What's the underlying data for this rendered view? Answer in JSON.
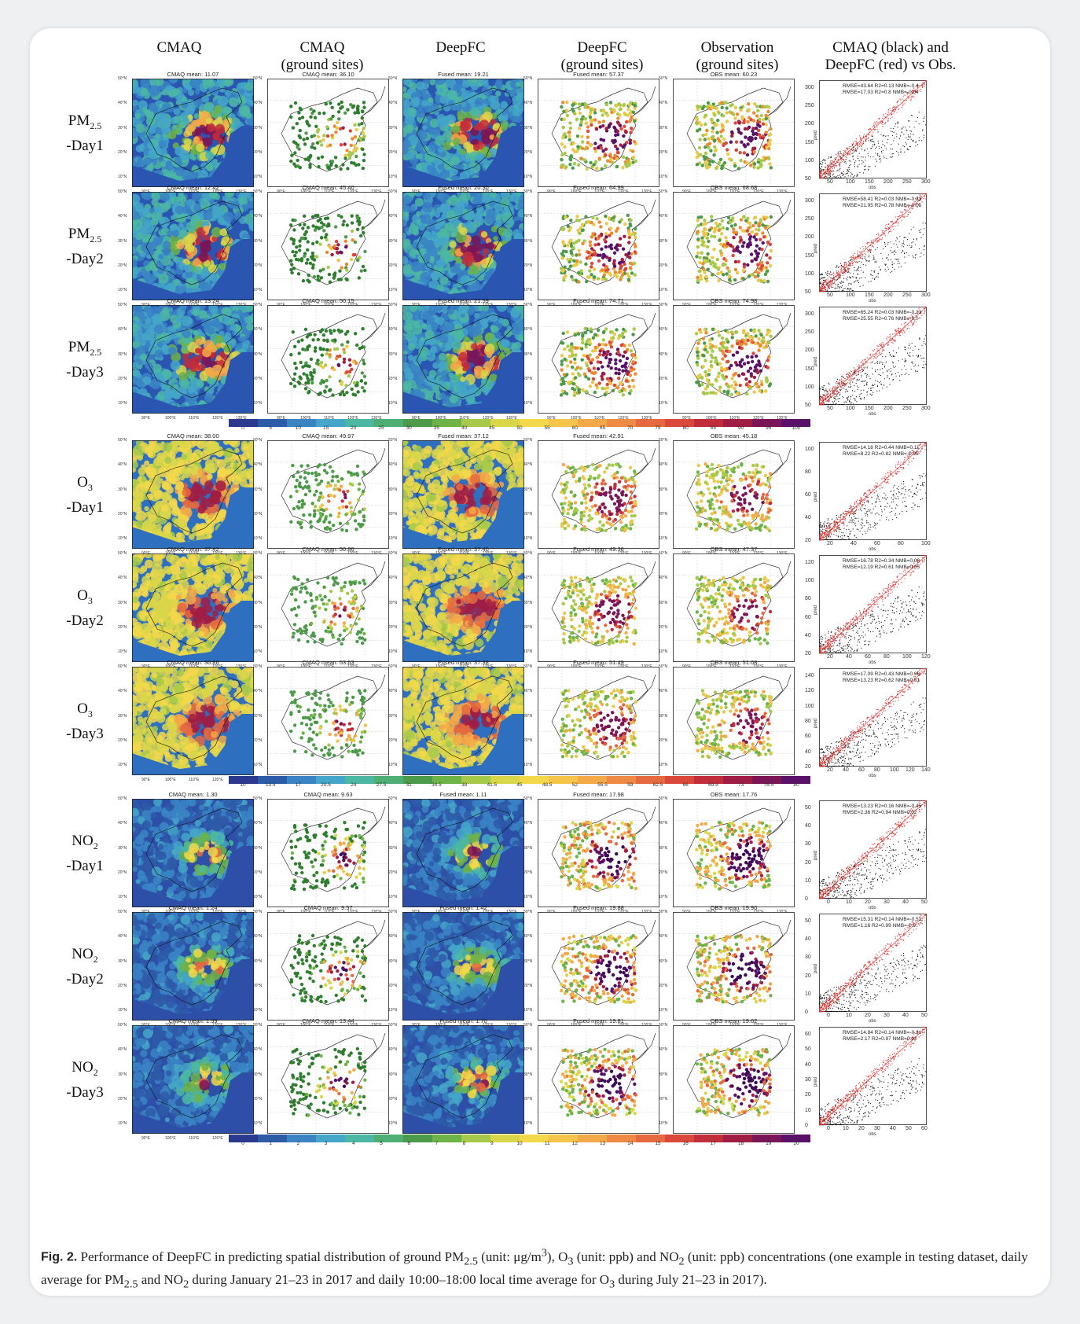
{
  "headers": [
    {
      "line1": "CMAQ",
      "line2": ""
    },
    {
      "line1": "CMAQ",
      "line2": "(ground sites)"
    },
    {
      "line1": "DeepFC",
      "line2": ""
    },
    {
      "line1": "DeepFC",
      "line2": "(ground sites)"
    },
    {
      "line1": "Observation",
      "line2": "(ground sites)"
    },
    {
      "line1": "CMAQ (black) and",
      "line2": "DeepFC (red) vs Obs."
    }
  ],
  "rows": [
    {
      "sp": "PM",
      "sub": "2.5",
      "day": "-Day1",
      "titles": [
        "CMAQ mean: 11.07",
        "CMAQ mean: 36.10",
        "Fused mean: 19.21",
        "Fused mean: 57.37",
        "OBS mean: 60.23"
      ],
      "stat1": "RMSE=43.64 R2=0.13 NMB=-0.4",
      "stat2": "RMSE=17.03 R2=0.8 NMB=-0.04",
      "yt": [
        "300",
        "250",
        "200",
        "150",
        "100",
        "50"
      ],
      "xt": [
        "50",
        "100",
        "150",
        "200",
        "250",
        "300"
      ],
      "pal": "pm",
      "ymax": 330
    },
    {
      "sp": "PM",
      "sub": "2.5",
      "day": "-Day2",
      "titles": [
        "CMAQ mean: 12.42",
        "CMAQ mean: 45.40",
        "Fused mean: 20.30",
        "Fused mean: 64.99",
        "OBS mean: 68.68"
      ],
      "stat1": "RMSE=58.41 R2=0.03 NMB=-0.33",
      "stat2": "RMSE=21.95 R2=0.78 NMB=-0.05",
      "yt": [
        "300",
        "250",
        "200",
        "150",
        "100",
        "50"
      ],
      "xt": [
        "50",
        "100",
        "150",
        "200",
        "250",
        "300"
      ],
      "pal": "pm",
      "ymax": 330
    },
    {
      "sp": "PM",
      "sub": "2.5",
      "day": "-Day3",
      "titles": [
        "CMAQ mean: 13.24",
        "CMAQ mean: 50.15",
        "Fused mean: 21.59",
        "Fused mean: 74.71",
        "OBS mean: 74.98"
      ],
      "stat1": "RMSE=65.24 R2=0.03 NMB=-0.33",
      "stat2": "RMSE=25.55 R2=0.76 NMB=-0.0",
      "yt": [
        "300",
        "250",
        "200",
        "150",
        "100",
        "50"
      ],
      "xt": [
        "50",
        "100",
        "150",
        "200",
        "250",
        "300"
      ],
      "pal": "pm",
      "ymax": 330
    },
    {
      "sp": "O",
      "sub": "3",
      "day": "-Day1",
      "titles": [
        "CMAQ mean: 38.00",
        "CMAQ mean: 49.97",
        "Fused mean: 37.12",
        "Fused mean: 42.91",
        "OBS mean: 45.18"
      ],
      "stat1": "RMSE=14.18 R2=0.44 NMB=0.11",
      "stat2": "RMSE=8.22 R2=0.82 NMB=-0.05",
      "yt": [
        "100",
        "80",
        "60",
        "40",
        "20"
      ],
      "xt": [
        "20",
        "40",
        "60",
        "80",
        "100"
      ],
      "pal": "o3",
      "ymax": 110
    },
    {
      "sp": "O",
      "sub": "3",
      "day": "-Day2",
      "titles": [
        "CMAQ mean: 37.42",
        "CMAQ mean: 50.86",
        "Fused mean: 37.40",
        "Fused mean: 49.36",
        "OBS mean: 47.37"
      ],
      "stat1": "RMSE=16.78 R2=0.34 NMB=0.08",
      "stat2": "RMSE=12.19 R2=0.61 NMB=0.05",
      "yt": [
        "120",
        "100",
        "80",
        "60",
        "40",
        "20"
      ],
      "xt": [
        "20",
        "40",
        "60",
        "80",
        "100",
        "120"
      ],
      "pal": "o3",
      "ymax": 125
    },
    {
      "sp": "O",
      "sub": "3",
      "day": "-Day3",
      "titles": [
        "CMAQ mean: 36.86",
        "CMAQ mean: 53.63",
        "Fused mean: 37.38",
        "Fused mean: 51.49",
        "OBS mean: 51.08"
      ],
      "stat1": "RMSE=17.09 R2=0.43 NMB=0.06",
      "stat2": "RMSE=13.23 R2=0.62 NMB=0.01",
      "yt": [
        "140",
        "120",
        "100",
        "80",
        "60",
        "40",
        "20"
      ],
      "xt": [
        "20",
        "40",
        "60",
        "80",
        "100",
        "120",
        "140"
      ],
      "pal": "o3",
      "ymax": 145
    },
    {
      "sp": "NO",
      "sub": "2",
      "day": "-Day1",
      "titles": [
        "CMAQ mean: 1.30",
        "CMAQ mean: 9.63",
        "Fused mean: 1.11",
        "Fused mean: 17.98",
        "OBS mean: 17.76"
      ],
      "stat1": "RMSE=13.23 R2=0.16 NMB=-0.45",
      "stat2": "RMSE=2.36 R2=0.94 NMB=0.02",
      "yt": [
        "50",
        "40",
        "30",
        "20",
        "10",
        "0"
      ],
      "xt": [
        "0",
        "10",
        "20",
        "30",
        "40",
        "50"
      ],
      "pal": "no",
      "ymax": 55
    },
    {
      "sp": "NO",
      "sub": "2",
      "day": "-Day2",
      "titles": [
        "CMAQ mean: 1.24",
        "CMAQ mean: 9.57",
        "Fused mean: 1.42",
        "Fused mean: 19.88",
        "OBS mean: 19.90"
      ],
      "stat1": "RMSE=15.31 R2=0.14 NMB=-0.51",
      "stat2": "RMSE=1.16 R2=0.99 NMB=-0.0",
      "yt": [
        "50",
        "40",
        "30",
        "20",
        "10",
        "0"
      ],
      "xt": [
        "0",
        "10",
        "20",
        "30",
        "40",
        "50"
      ],
      "pal": "no",
      "ymax": 55
    },
    {
      "sp": "NO",
      "sub": "2",
      "day": "-Day3",
      "titles": [
        "CMAQ mean: 1.59",
        "CMAQ mean: 13.44",
        "Fused mean: 1.70",
        "Fused mean: 19.81",
        "OBS mean: 19.62"
      ],
      "stat1": "RMSE=14.84 R2=0.14 NMB=-0.31",
      "stat2": "RMSE=2.17 R2=0.97 NMB=0.02",
      "yt": [
        "60",
        "50",
        "40",
        "30",
        "20",
        "10",
        "0"
      ],
      "xt": [
        "0",
        "10",
        "20",
        "30",
        "40",
        "50",
        "60"
      ],
      "pal": "no",
      "ymax": 65
    }
  ],
  "map_lat_labels": [
    "50°N",
    "40°N",
    "30°N",
    "20°N",
    "10°N"
  ],
  "map_lon_labels": [
    "90°E",
    "100°E",
    "110°E",
    "120°E",
    "130°E"
  ],
  "scatter_xlabel": "obs",
  "scatter_ylabel": "pred",
  "colorbars": [
    {
      "ticks": [
        "0",
        "5",
        "10",
        "15",
        "20",
        "25",
        "30",
        "35",
        "40",
        "45",
        "50",
        "55",
        "60",
        "65",
        "70",
        "75",
        "80",
        "85",
        "90",
        "95",
        "100"
      ],
      "colors": [
        "#2b3a8f",
        "#2e5ba8",
        "#3a84c4",
        "#44a6c8",
        "#4cb7a3",
        "#4fae74",
        "#4c9a4a",
        "#6db348",
        "#a6c94a",
        "#d9d64a",
        "#f2d84a",
        "#f5c44a",
        "#f3a948",
        "#ee8a44",
        "#e56a3f",
        "#d9483b",
        "#c22d3b",
        "#a01d44",
        "#7a1657",
        "#5a1268"
      ]
    },
    {
      "ticks": [
        "10",
        "13.5",
        "17",
        "20.5",
        "24",
        "27.5",
        "31",
        "34.5",
        "38",
        "41.5",
        "45",
        "48.5",
        "52",
        "55.5",
        "59",
        "62.5",
        "66",
        "69.5",
        "73",
        "76.5",
        "80"
      ],
      "colors": [
        "#2b3a8f",
        "#2e5ba8",
        "#3a84c4",
        "#44a6c8",
        "#4cb7a3",
        "#4fae74",
        "#4c9a4a",
        "#6db348",
        "#a6c94a",
        "#d9d64a",
        "#f2d84a",
        "#f5c44a",
        "#f3a948",
        "#ee8a44",
        "#e56a3f",
        "#d9483b",
        "#c22d3b",
        "#a01d44",
        "#7a1657",
        "#5a1268"
      ]
    },
    {
      "ticks": [
        "0",
        "1",
        "2",
        "3",
        "4",
        "5",
        "6",
        "7",
        "8",
        "9",
        "10",
        "11",
        "12",
        "13",
        "14",
        "15",
        "16",
        "17",
        "18",
        "19",
        "20"
      ],
      "colors": [
        "#2b3a8f",
        "#2e5ba8",
        "#3a84c4",
        "#44a6c8",
        "#4cb7a3",
        "#4fae74",
        "#4c9a4a",
        "#6db348",
        "#a6c94a",
        "#d9d64a",
        "#f2d84a",
        "#f5c44a",
        "#f3a948",
        "#ee8a44",
        "#e56a3f",
        "#d9483b",
        "#c22d3b",
        "#a01d44",
        "#7a1657",
        "#5a1268"
      ]
    }
  ],
  "caption": {
    "label": "Fig. 2.",
    "text": "Performance of DeepFC in predicting spatial distribution of ground PM2.5 (unit: μg/m3), O3 (unit: ppb) and NO2 (unit: ppb) concentrations (one example in testing dataset, daily average for PM2.5 and NO2 during January 21–23 in 2017 and daily 10:00–18:00 local time average for O3 during July 21–23 in 2017)."
  },
  "colors": {
    "point_cmaq": "#111111",
    "point_deepfc": "#d9302c",
    "ref_line": "#e05a5a",
    "ocean_pm": "#2a55b0",
    "ocean_o3": "#2f6fc0",
    "ocean_no": "#2d4fa8"
  }
}
